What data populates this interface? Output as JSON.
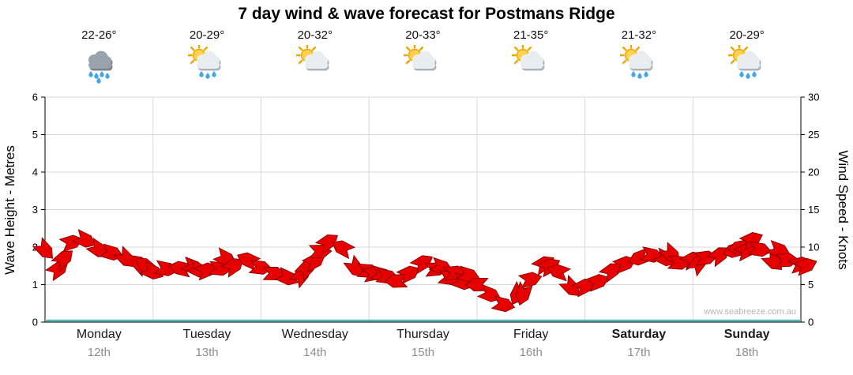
{
  "title": "7 day wind & wave forecast for Postmans Ridge",
  "watermark": "www.seabreeze.com.au",
  "y_left": {
    "label": "Wave Height - Metres",
    "ticks": [
      0,
      1,
      2,
      3,
      4,
      5,
      6
    ],
    "range": [
      0,
      6
    ]
  },
  "y_right": {
    "label": "Wind Speed - Knots",
    "ticks": [
      0,
      5,
      10,
      15,
      20,
      25,
      30
    ],
    "range": [
      0,
      30
    ]
  },
  "days": [
    {
      "name": "Monday",
      "date": "12th",
      "temp": "22-26°",
      "icon": "rain",
      "bold": false
    },
    {
      "name": "Tuesday",
      "date": "13th",
      "temp": "20-29°",
      "icon": "sun-cloud-rain",
      "bold": false
    },
    {
      "name": "Wednesday",
      "date": "14th",
      "temp": "20-32°",
      "icon": "sun-cloud",
      "bold": false
    },
    {
      "name": "Thursday",
      "date": "15th",
      "temp": "20-33°",
      "icon": "sun-cloud",
      "bold": false
    },
    {
      "name": "Friday",
      "date": "16th",
      "temp": "21-35°",
      "icon": "sun-cloud",
      "bold": false
    },
    {
      "name": "Saturday",
      "date": "17th",
      "temp": "21-32°",
      "icon": "sun-cloud-rain",
      "bold": true
    },
    {
      "name": "Sunday",
      "date": "18th",
      "temp": "20-29°",
      "icon": "sun-cloud-rain",
      "bold": true
    }
  ],
  "chart_data": {
    "type": "line",
    "x_description": "3-hourly samples, Monday 12th 00:00 through Sunday 18th 24:00",
    "samples_per_day": 8,
    "grid": true,
    "ylim_left": [
      0,
      6
    ],
    "ylim_right": [
      0,
      30
    ],
    "series": [
      {
        "name": "Wind Speed",
        "unit": "knots",
        "axis": "right",
        "style": "red wind direction arrows",
        "values": [
          10,
          7.5,
          11,
          10.5,
          9.5,
          9,
          8.5,
          7.5,
          6.5,
          7,
          7.5,
          7,
          6.5,
          7.5,
          8,
          8.5,
          7.5,
          6.5,
          5.5,
          6.5,
          8.5,
          10.5,
          9.5,
          7.5,
          6.5,
          6,
          5.5,
          6.5,
          7.5,
          7,
          6,
          5.5,
          5,
          3.5,
          2.5,
          3.5,
          6,
          7.5,
          6.5,
          5,
          4.5,
          5.5,
          6.5,
          7.5,
          8.5,
          9,
          8.5,
          7.5,
          8,
          8.5,
          9,
          9.5,
          10,
          9.5,
          8.5,
          8,
          7.5
        ]
      },
      {
        "name": "Wave Height",
        "unit": "metres",
        "axis": "left",
        "style": "flat teal line",
        "constant_value": 0
      }
    ]
  },
  "colors": {
    "arrow_fill": "#e60000",
    "arrow_stroke": "#7d0000",
    "wave_line": "#4fbdb6",
    "grid": "#d9d9d9",
    "axis": "#000000",
    "tick_text": "#000000",
    "date_text": "#8c8c8c",
    "watermark_text": "#b5b5b5",
    "sun": "#ffd24d",
    "sun_ray": "#f0a500",
    "cloud_light": "#e9edf0",
    "cloud_shadow": "#aab3bb",
    "cloud_dark": "#99a3ad",
    "cloud_dark_shadow": "#79838d",
    "rain_drop": "#41a7e8"
  }
}
